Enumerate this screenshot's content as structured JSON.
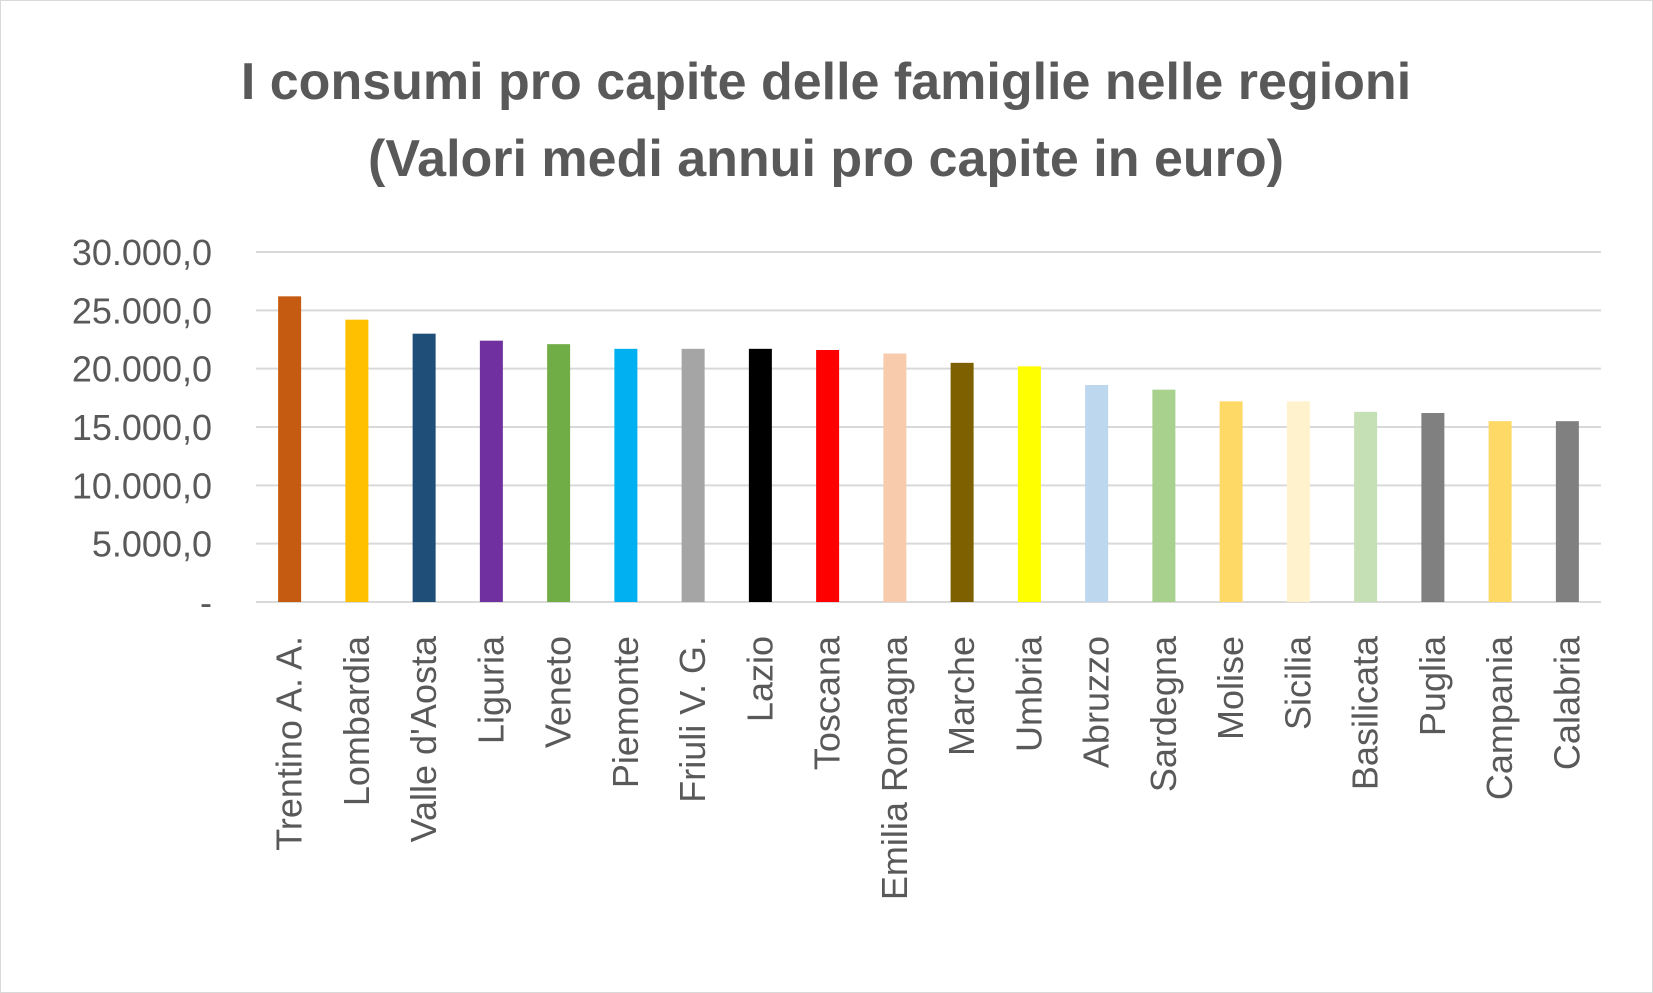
{
  "chart_data": {
    "type": "bar",
    "title": "I consumi pro capite delle famiglie nelle regioni",
    "subtitle": "(Valori medi annui pro capite in euro)",
    "xlabel": "",
    "ylabel": "",
    "ylim": [
      0,
      30000
    ],
    "y_ticks": [
      {
        "value": 0,
        "label": "-"
      },
      {
        "value": 5000,
        "label": "5.000,0"
      },
      {
        "value": 10000,
        "label": "10.000,0"
      },
      {
        "value": 15000,
        "label": "15.000,0"
      },
      {
        "value": 20000,
        "label": "20.000,0"
      },
      {
        "value": 25000,
        "label": "25.000,0"
      },
      {
        "value": 30000,
        "label": "30.000,0"
      }
    ],
    "grid": true,
    "legend": "none",
    "categories": [
      "Trentino A. A.",
      "Lombardia",
      "Valle d'Aosta",
      "Liguria",
      "Veneto",
      "Piemonte",
      "Friuli V. G.",
      "Lazio",
      "Toscana",
      "Emilia Romagna",
      "Marche",
      "Umbria",
      "Abruzzo",
      "Sardegna",
      "Molise",
      "Sicilia",
      "Basilicata",
      "Puglia",
      "Campania",
      "Calabria"
    ],
    "values": [
      26200,
      24200,
      23000,
      22400,
      22100,
      21700,
      21700,
      21700,
      21600,
      21300,
      20500,
      20200,
      18600,
      18200,
      17200,
      17200,
      16300,
      16200,
      15500,
      15500
    ],
    "colors": [
      "#c55a11",
      "#ffc000",
      "#1f4e79",
      "#7030a0",
      "#70ad47",
      "#00b0f0",
      "#a5a5a5",
      "#000000",
      "#ff0000",
      "#f8cbad",
      "#7f6000",
      "#ffff00",
      "#bdd7ee",
      "#a9d18e",
      "#ffd966",
      "#fff2cc",
      "#c5e0b4",
      "#808080",
      "#ffd966",
      "#808080"
    ]
  }
}
